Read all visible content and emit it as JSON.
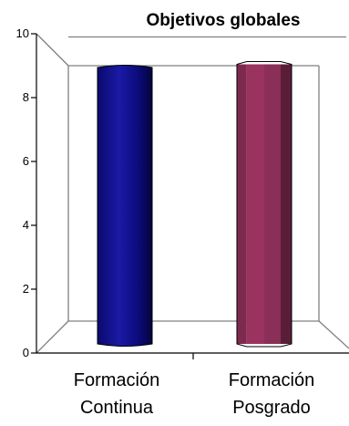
{
  "chart_data": {
    "type": "bar",
    "title": "Objetivos globales",
    "categories": [
      [
        "Formación",
        "Continua"
      ],
      [
        "Formación",
        "Posgrado"
      ]
    ],
    "values": [
      8.8,
      8.9
    ],
    "ylim": [
      0,
      10
    ],
    "yticks": [
      0,
      2,
      4,
      6,
      8,
      10
    ],
    "bar_colors": [
      "#0a0a7a",
      "#9b3360"
    ],
    "bar_shapes": [
      "cylinder",
      "octagonal-prism"
    ],
    "grid": false,
    "legend": "none",
    "style": "3d"
  }
}
